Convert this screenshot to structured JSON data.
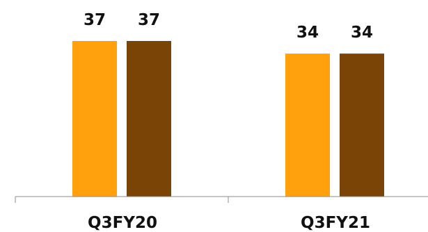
{
  "chart_data": {
    "type": "bar",
    "categories": [
      "Q3FY20",
      "Q3FY21"
    ],
    "series": [
      {
        "values": [
          37,
          34
        ],
        "color": "#FFA00C"
      },
      {
        "values": [
          37,
          34
        ],
        "color": "#7A4407"
      }
    ],
    "ylim": [
      0,
      40
    ],
    "grid": false,
    "legend": "none"
  }
}
